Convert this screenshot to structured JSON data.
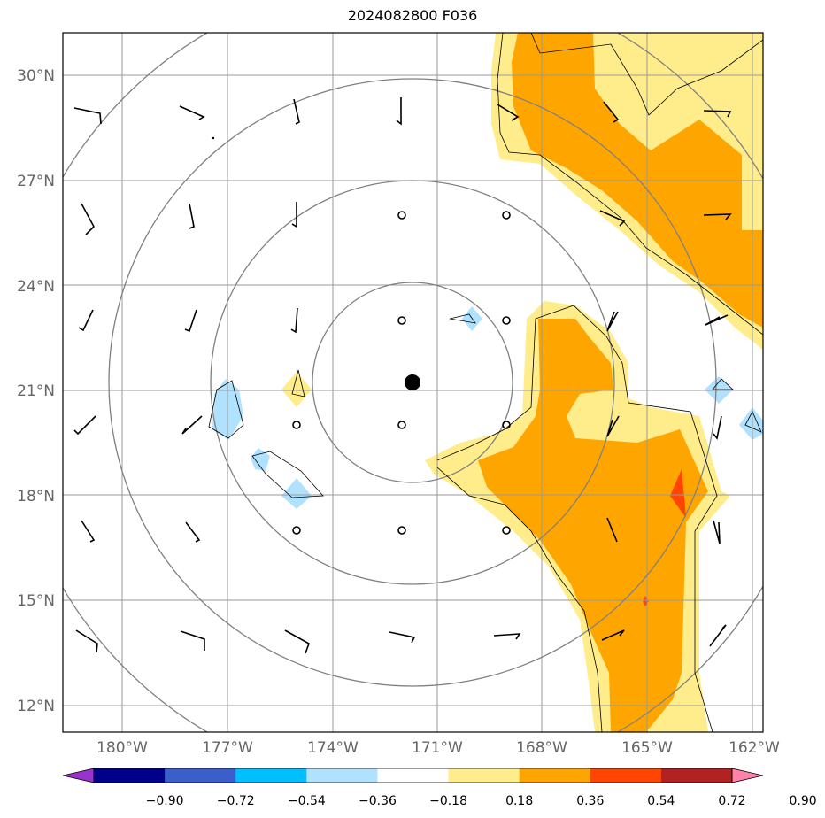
{
  "title": "2024082800 F036",
  "map": {
    "lat_labels": [
      "30°N",
      "27°N",
      "24°N",
      "21°N",
      "18°N",
      "15°N",
      "12°N"
    ],
    "lon_labels": [
      "180°W",
      "177°W",
      "174°W",
      "171°W",
      "168°W",
      "165°W",
      "162°W"
    ],
    "center_marker": "filled-circle"
  },
  "colorbar": {
    "colors": [
      "#9a32cd",
      "#00008b",
      "#3a5fcd",
      "#00bfff",
      "#b0e2ff",
      "#ffffff",
      "#ffec8b",
      "#ffa500",
      "#ff4500",
      "#b22222",
      "#ff82ab"
    ],
    "labels": [
      "−0.90",
      "−0.72",
      "−0.54",
      "−0.36",
      "−0.18",
      "0.18",
      "0.36",
      "0.54",
      "0.72",
      "0.90"
    ]
  }
}
